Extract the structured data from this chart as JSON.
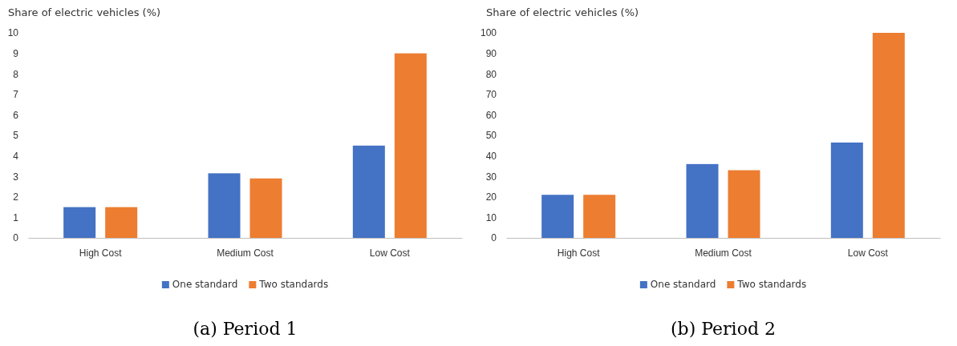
{
  "chart_data": [
    {
      "type": "bar",
      "ylabel": "Share of electric vehicles (%)",
      "categories": [
        "High Cost",
        "Medium Cost",
        "Low Cost"
      ],
      "series": [
        {
          "name": "One standard",
          "color": "#4472c4",
          "values": [
            1.5,
            3.15,
            4.5
          ]
        },
        {
          "name": "Two standards",
          "color": "#ed7d31",
          "values": [
            1.5,
            2.9,
            9.0
          ]
        }
      ],
      "ylim": [
        0,
        10
      ],
      "yticks": [
        0,
        1,
        2,
        3,
        4,
        5,
        6,
        7,
        8,
        9,
        10
      ],
      "grid": false,
      "legend": "bottom",
      "annotations": [
        "(a) Period 1"
      ]
    },
    {
      "type": "bar",
      "ylabel": "Share of electric vehicles (%)",
      "categories": [
        "High Cost",
        "Medium Cost",
        "Low Cost"
      ],
      "series": [
        {
          "name": "One standard",
          "color": "#4472c4",
          "values": [
            21,
            36,
            46.5
          ]
        },
        {
          "name": "Two standards",
          "color": "#ed7d31",
          "values": [
            21,
            33,
            100
          ]
        }
      ],
      "ylim": [
        0,
        100
      ],
      "yticks": [
        0,
        10,
        20,
        30,
        40,
        50,
        60,
        70,
        80,
        90,
        100
      ],
      "grid": false,
      "legend": "bottom",
      "annotations": [
        "(b) Period 2"
      ]
    }
  ]
}
